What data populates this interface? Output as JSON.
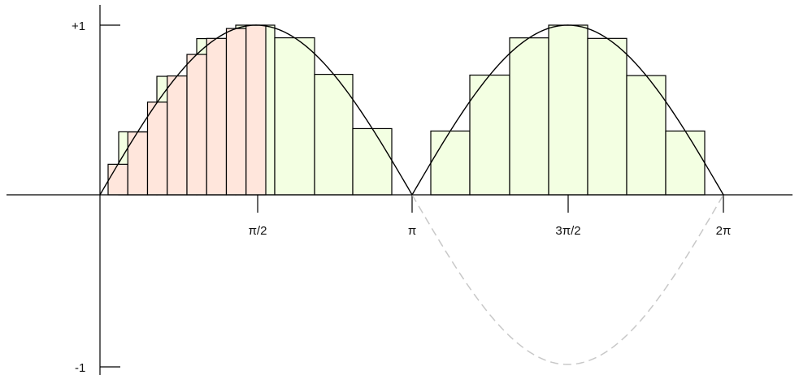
{
  "diagram": {
    "tick_labels": {
      "y_top": "+1",
      "y_bottom": "-1",
      "x_half_pi": "π/2",
      "x_pi": "π",
      "x_three_half_pi": "3π/2",
      "x_two_pi": "2π"
    },
    "colors": {
      "axis": "#000000",
      "curve": "#000000",
      "dashed_curve": "#c8c8c8",
      "coarse_fill": "#f3ffe2",
      "fine_fill": "#ffe6dc",
      "bar_stroke": "#000000"
    }
  }
}
